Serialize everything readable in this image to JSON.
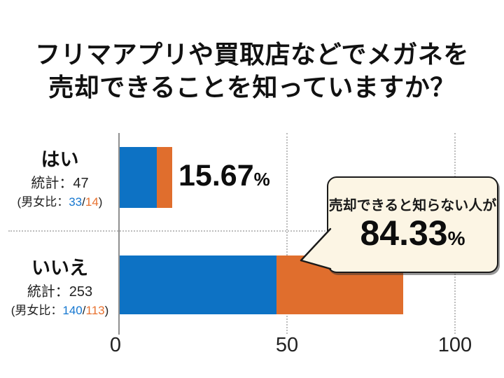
{
  "title": {
    "line1": "フリマアプリや買取店などでメガネを",
    "line2": "売却できることを知っていますか？"
  },
  "rows": [
    {
      "category": "はい",
      "stat": "統計：47",
      "ratio_open": "(男女比：",
      "male_count": "33",
      "ratio_sep": "/",
      "female_count": "14",
      "ratio_close": ")",
      "percent": "15.67",
      "percent_unit": "%"
    },
    {
      "category": "いいえ",
      "stat": "統計：253",
      "ratio_open": "(男女比：",
      "male_count": "140",
      "ratio_sep": "/",
      "female_count": "113",
      "ratio_close": ")"
    }
  ],
  "callout": {
    "label": "売却できると知らない人が",
    "percent": "84.33",
    "percent_unit": "%"
  },
  "x_axis": {
    "ticks": [
      "0",
      "50",
      "100"
    ]
  },
  "colors": {
    "male_blue": "#0d72c4",
    "female_orange": "#e06e2d",
    "text_blue": "#1577d0",
    "text_orange": "#e87230",
    "callout_bg": "#fcf5e4",
    "callout_border": "#1a1a1a",
    "grid_gray": "#bdbdbd",
    "axis_gray": "#8f8f8f"
  },
  "chart_data": {
    "type": "bar",
    "orientation": "horizontal",
    "stacked": true,
    "title": "フリマアプリや買取店などでメガネを売却できることを知っていますか？",
    "categories": [
      "はい",
      "いいえ"
    ],
    "series": [
      {
        "name": "男",
        "color": "#0d72c4",
        "values_pct": [
          11.0,
          46.67
        ],
        "counts": [
          33,
          140
        ]
      },
      {
        "name": "女",
        "color": "#e06e2d",
        "values_pct": [
          4.67,
          37.67
        ],
        "counts": [
          14,
          113
        ]
      }
    ],
    "totals": {
      "counts": [
        47,
        253
      ],
      "percents": [
        15.67,
        84.33
      ]
    },
    "xlim": [
      0,
      112
    ],
    "x_ticks": [
      0,
      50,
      100
    ],
    "grid": "dotted vertical gridlines at 50 and 100; dotted horizontal separator between categories; legend off",
    "annotation": {
      "text": "売却できると知らない人が 84.33%",
      "target_category": "いいえ"
    }
  }
}
